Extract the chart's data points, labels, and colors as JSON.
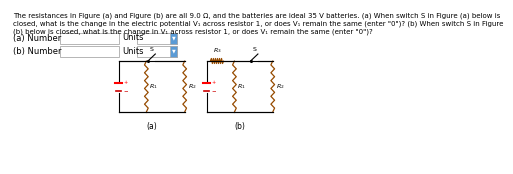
{
  "title_text": "The resistances in Figure (a) and Figure (b) are all 9.0 Ω, and the batteries are ideal 35 V batteries. (a) When switch S in Figure (a) below is\nclosed, what is the change in the electric potential V₁ across resistor 1, or does V₁ remain the same (enter \"0\")? (b) When switch S in Figure\n(b) below is closed, what is the change in V₁ across resistor 1, or does V₁ remain the same (enter \"0\")?",
  "label_a": "(a)",
  "label_b": "(b)",
  "answer_a_label": "(a) Number",
  "answer_b_label": "(b) Number",
  "units_label": "Units",
  "bg_color": "#ffffff",
  "text_color": "#000000",
  "dropdown_color": "#5b9bd5",
  "resistor_color": "#964B00",
  "circuit_lw": 0.8,
  "resistor_lw": 0.9,
  "battery_pos_color": "#ff0000",
  "battery_neg_color": "#cc0000",
  "title_fontsize": 5.0,
  "label_fontsize": 5.5,
  "answer_fontsize": 6.0
}
